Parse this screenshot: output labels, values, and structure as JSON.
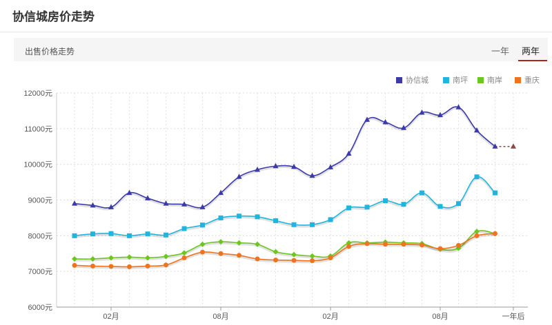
{
  "header": {
    "title": "协信城房价走势"
  },
  "subbar": {
    "label": "出售价格走势",
    "tabs": [
      {
        "label": "一年",
        "active": false
      },
      {
        "label": "两年",
        "active": true
      }
    ],
    "active_tab_color": "#b3241f"
  },
  "chart_data": {
    "type": "line",
    "title": "",
    "xlabel": "",
    "ylabel": "",
    "ylim": [
      6000,
      12000
    ],
    "yticks": [
      {
        "value": 6000,
        "label": "6000元"
      },
      {
        "value": 7000,
        "label": "7000元"
      },
      {
        "value": 8000,
        "label": "8000元"
      },
      {
        "value": 9000,
        "label": "9000元"
      },
      {
        "value": 10000,
        "label": "10000元"
      },
      {
        "value": 11000,
        "label": "11000元"
      },
      {
        "value": 12000,
        "label": "12000元"
      }
    ],
    "xticks": [
      {
        "index": 2,
        "label": "02月"
      },
      {
        "index": 8,
        "label": "08月"
      },
      {
        "index": 14,
        "label": "02月"
      },
      {
        "index": 20,
        "label": "08月"
      },
      {
        "index": 24,
        "label": "一年后"
      }
    ],
    "grid": true,
    "legend_position": "top-right",
    "series": [
      {
        "name": "协信城",
        "color": "#3b3aa8",
        "marker": "triangle",
        "values": [
          8900,
          8850,
          8800,
          9200,
          9050,
          8900,
          8880,
          8800,
          9200,
          9650,
          9850,
          9950,
          9930,
          9680,
          9920,
          10300,
          11250,
          11180,
          11020,
          11450,
          11380,
          11600,
          10950,
          10500
        ],
        "forecast": [
          10500,
          10500
        ]
      },
      {
        "name": "南坪",
        "color": "#1fb5dc",
        "marker": "square",
        "values": [
          8000,
          8050,
          8060,
          8000,
          8050,
          8020,
          8200,
          8300,
          8500,
          8550,
          8530,
          8420,
          8310,
          8310,
          8450,
          8780,
          8800,
          8980,
          8880,
          9200,
          8820,
          8900,
          9650,
          9200
        ]
      },
      {
        "name": "南岸",
        "color": "#6cc61f",
        "marker": "diamond",
        "values": [
          7350,
          7350,
          7380,
          7400,
          7380,
          7420,
          7520,
          7760,
          7830,
          7800,
          7760,
          7550,
          7470,
          7430,
          7430,
          7800,
          7800,
          7820,
          7800,
          7780,
          7620,
          7650,
          8120,
          8060
        ]
      },
      {
        "name": "重庆",
        "color": "#ee7420",
        "marker": "circle",
        "values": [
          7170,
          7150,
          7140,
          7130,
          7150,
          7180,
          7380,
          7540,
          7500,
          7450,
          7350,
          7320,
          7310,
          7300,
          7380,
          7700,
          7780,
          7760,
          7760,
          7740,
          7640,
          7730,
          8000,
          8060
        ]
      }
    ]
  }
}
